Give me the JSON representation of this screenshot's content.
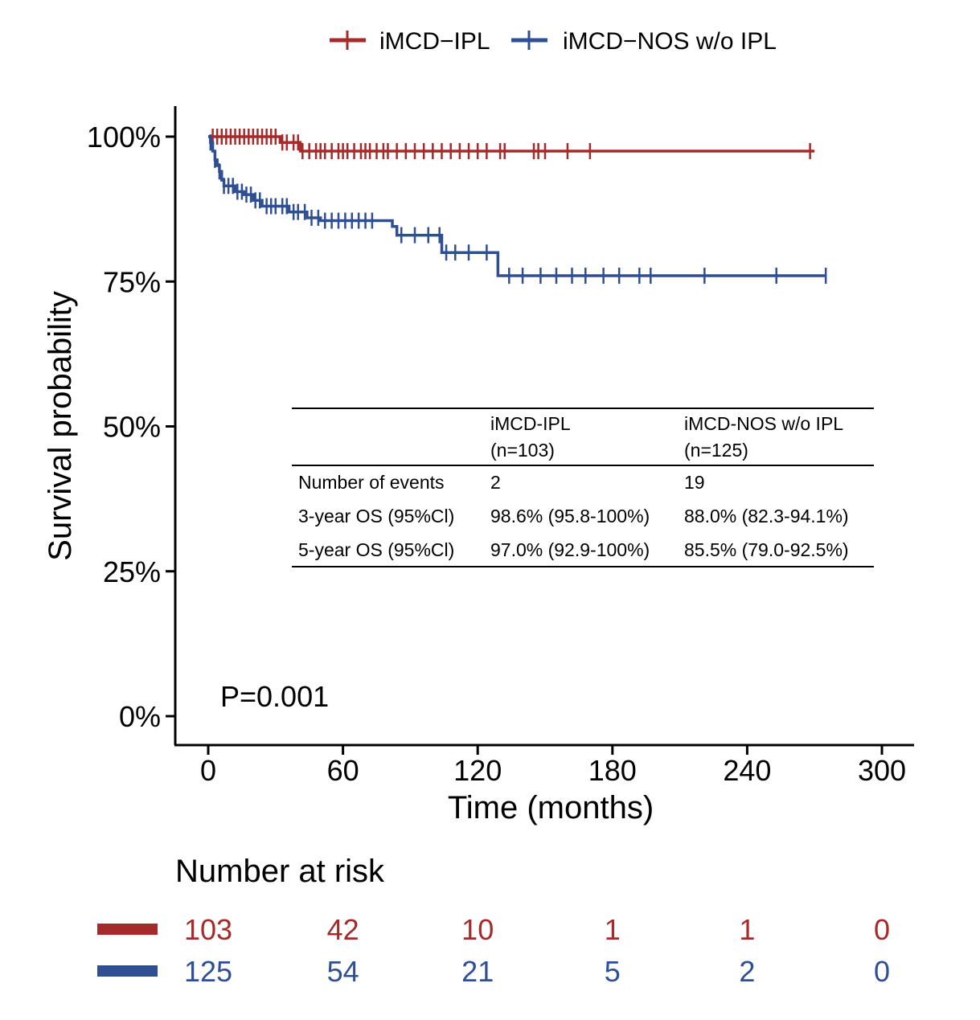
{
  "colors": {
    "ipl": "#a52a2a",
    "nos": "#2f4f94",
    "axis": "#000000"
  },
  "legend": {
    "items": [
      {
        "label": "iMCD−IPL",
        "series": "ipl"
      },
      {
        "label": "iMCD−NOS w/o IPL",
        "series": "nos"
      }
    ]
  },
  "pvalue": "P=0.001",
  "summary_table": {
    "headers": [
      {
        "line1": "",
        "line2": ""
      },
      {
        "line1": "iMCD-IPL",
        "line2": "(n=103)"
      },
      {
        "line1": "iMCD-NOS w/o IPL",
        "line2": "(n=125)"
      }
    ],
    "rows": [
      [
        "Number of events",
        "2",
        "19"
      ],
      [
        "3-year OS (95%Cl)",
        "98.6% (95.8-100%)",
        "88.0% (82.3-94.1%)"
      ],
      [
        "5-year OS (95%Cl)",
        "97.0% (92.9-100%)",
        "85.5% (79.0-92.5%)"
      ]
    ]
  },
  "risk_table": {
    "title": "Number at risk",
    "times": [
      0,
      60,
      120,
      180,
      240,
      300
    ],
    "rows": [
      {
        "series": "ipl",
        "values": [
          "103",
          "42",
          "10",
          "1",
          "1",
          "0"
        ]
      },
      {
        "series": "nos",
        "values": [
          "125",
          "54",
          "21",
          "5",
          "2",
          "0"
        ]
      }
    ]
  },
  "chart_data": {
    "type": "line",
    "subtype": "kaplan-meier step",
    "xlabel": "Time (months)",
    "ylabel": "Survival probability",
    "xlim": [
      -15,
      315
    ],
    "ylim": [
      -5,
      105
    ],
    "xticks": [
      0,
      60,
      120,
      180,
      240,
      300
    ],
    "xtick_labels": [
      "0",
      "60",
      "120",
      "180",
      "240",
      "300"
    ],
    "yticks": [
      0,
      25,
      50,
      75,
      100
    ],
    "ytick_labels": [
      "0%",
      "25%",
      "50%",
      "75%",
      "100%"
    ],
    "grid": false,
    "legend_position": "top",
    "series": [
      {
        "name": "iMCD−IPL",
        "key": "ipl",
        "steps": [
          [
            0,
            100
          ],
          [
            32,
            99
          ],
          [
            41,
            97.5
          ],
          [
            270,
            97.5
          ]
        ],
        "censor_times": [
          2,
          4,
          6,
          8,
          10,
          12,
          14,
          16,
          18,
          20,
          22,
          24,
          26,
          28,
          30,
          33,
          35,
          38,
          40,
          42,
          45,
          48,
          50,
          52,
          55,
          58,
          60,
          62,
          65,
          68,
          70,
          72,
          75,
          78,
          80,
          84,
          88,
          92,
          96,
          100,
          104,
          108,
          112,
          116,
          120,
          124,
          130,
          132,
          145,
          147,
          150,
          160,
          170,
          268
        ]
      },
      {
        "name": "iMCD−NOS w/o IPL",
        "key": "nos",
        "steps": [
          [
            0,
            100
          ],
          [
            1,
            99
          ],
          [
            2,
            97.5
          ],
          [
            3,
            96
          ],
          [
            4,
            95
          ],
          [
            5,
            94
          ],
          [
            6,
            92.5
          ],
          [
            7,
            91.5
          ],
          [
            12,
            90.5
          ],
          [
            16,
            90
          ],
          [
            20,
            89
          ],
          [
            24,
            88
          ],
          [
            36,
            87
          ],
          [
            44,
            86
          ],
          [
            50,
            85.5
          ],
          [
            82,
            84.5
          ],
          [
            84,
            83
          ],
          [
            104,
            80
          ],
          [
            129,
            76
          ],
          [
            275,
            76
          ]
        ],
        "censor_times": [
          1,
          3,
          5,
          7,
          9,
          11,
          13,
          15,
          17,
          19,
          21,
          23,
          26,
          28,
          30,
          33,
          35,
          38,
          40,
          43,
          46,
          49,
          52,
          55,
          58,
          61,
          64,
          67,
          70,
          73,
          86,
          92,
          98,
          103,
          106,
          110,
          116,
          124,
          134,
          140,
          148,
          155,
          162,
          168,
          176,
          183,
          192,
          197,
          221,
          253,
          275
        ]
      }
    ]
  }
}
